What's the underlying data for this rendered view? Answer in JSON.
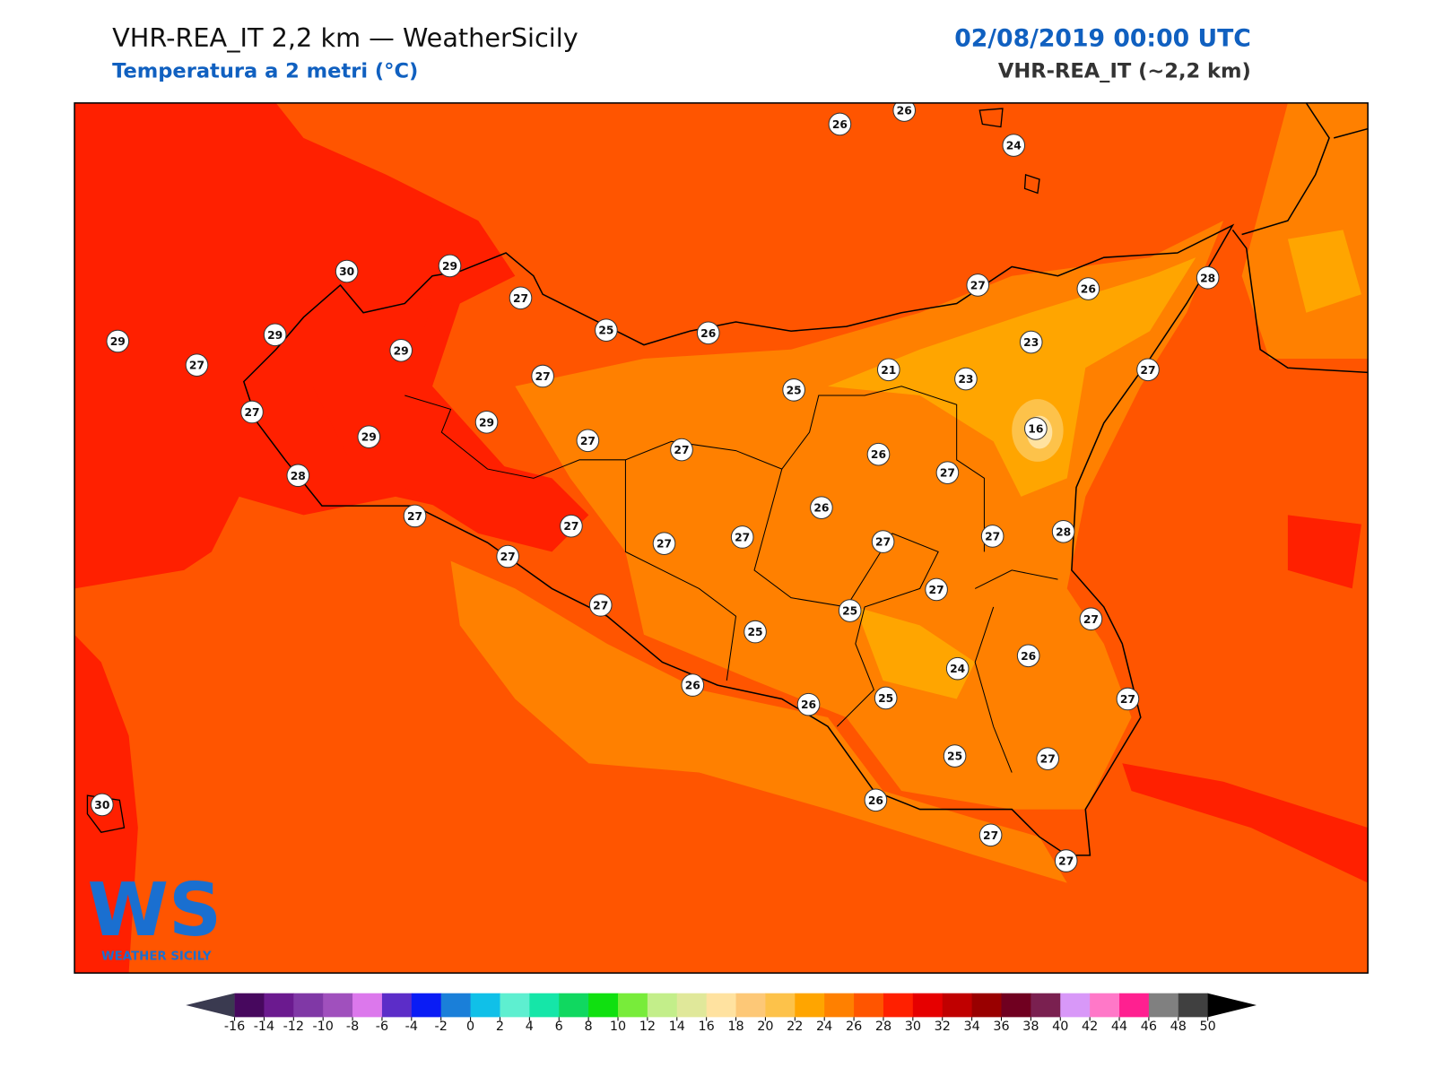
{
  "header": {
    "title": "VHR-REA_IT 2,2 km — WeatherSicily",
    "subtitle": "Temperatura a 2 metri (°C)",
    "date": "02/08/2019 00:00 UTC",
    "model": "VHR-REA_IT (~2,2 km)"
  },
  "stations": {
    "values": [
      26,
      26,
      24,
      30,
      29,
      27,
      25,
      26,
      27,
      26,
      28,
      29,
      29,
      27,
      29,
      27,
      25,
      21,
      23,
      23,
      27,
      16,
      27,
      29,
      29,
      27,
      27,
      26,
      27,
      28,
      26,
      27,
      27,
      27,
      27,
      27,
      27,
      28,
      27,
      27,
      27,
      25,
      25,
      27,
      26,
      24,
      26,
      26,
      25,
      27,
      25,
      27,
      26,
      30,
      27,
      27
    ]
  },
  "colorbar": {
    "ticks": [
      -16,
      -14,
      -12,
      -10,
      -8,
      -6,
      -4,
      -2,
      0,
      2,
      4,
      6,
      8,
      10,
      12,
      14,
      16,
      18,
      20,
      22,
      24,
      26,
      28,
      30,
      32,
      34,
      36,
      38,
      40,
      42,
      44,
      46,
      48,
      50
    ],
    "colors": [
      "#47085e",
      "#6b1a8f",
      "#8038a6",
      "#a050bd",
      "#dc78ec",
      "#5c2dc8",
      "#0a1cf5",
      "#1a7fd9",
      "#10c0e8",
      "#5eefd0",
      "#15e6a8",
      "#10d860",
      "#10e010",
      "#78ec3a",
      "#c3ee8a",
      "#e0e89a",
      "#ffe2a0",
      "#fdc877",
      "#fdc24a",
      "#ffa500",
      "#ff8000",
      "#ff5500",
      "#ff2000",
      "#e60000",
      "#c00000",
      "#990000",
      "#700020",
      "#7a2050",
      "#d898f8",
      "#ff78c8",
      "#ff2090",
      "#808080",
      "#404040"
    ],
    "under_color": "#3a3a50",
    "over_color": "#000000"
  },
  "logo": {
    "mark": "WS",
    "text": "WEATHER SICILY"
  }
}
